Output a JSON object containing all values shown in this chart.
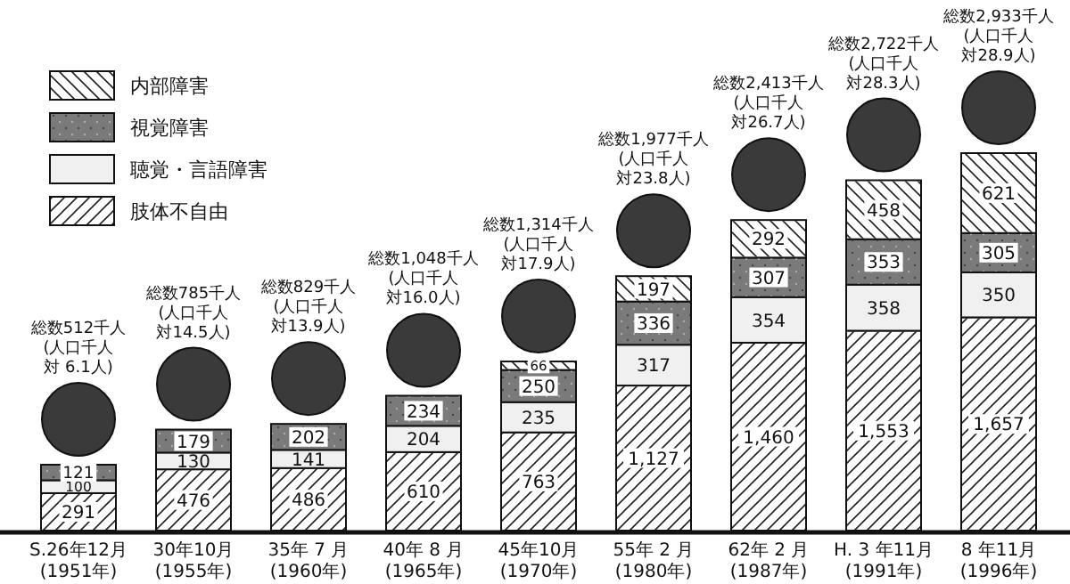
{
  "chart_data": {
    "type": "bar",
    "stacked": true,
    "data_labels": true,
    "legend": "top left",
    "categories": [
      "S.26年12月\n(1951年)",
      "30年10月\n(1955年)",
      "35年 7 月\n(1960年)",
      "40年 8 月\n(1965年)",
      "45年10月\n(1970年)",
      "55年 2 月\n(1980年)",
      "62年 2 月\n(1987年)",
      "H. 3 年11月\n(1991年)",
      "8 年11月\n(1996年)"
    ],
    "series": [
      {
        "name": "肢体不自由",
        "color": "#ffffff",
        "values": [
          291,
          476,
          486,
          610,
          763,
          1127,
          1460,
          1553,
          1657
        ],
        "value_labels": [
          "291",
          "476",
          "486",
          "610",
          "763",
          "1,127",
          "1,460",
          "1,553",
          "1,657"
        ]
      },
      {
        "name": "聴覚・言語障害",
        "color": "#f0f0f0",
        "values": [
          100,
          130,
          141,
          204,
          235,
          317,
          354,
          358,
          350
        ]
      },
      {
        "name": "視覚障害",
        "color": "#7a7a7a",
        "values": [
          121,
          179,
          202,
          234,
          250,
          336,
          307,
          353,
          305
        ]
      },
      {
        "name": "内部障害",
        "color": "#ffffff",
        "values": [
          null,
          null,
          null,
          null,
          66,
          197,
          292,
          458,
          621
        ]
      }
    ],
    "annotations": [
      "総数512千人",
      "(人口千人",
      "対 6.1人)",
      "総数785千人",
      "(人口千人",
      "対14.5人)",
      "総数829千人",
      "(人口千人",
      "対13.9人)",
      "総数1,048千人",
      "(人口千人",
      "対16.0人)",
      "総数1,314千人",
      "(人口千人",
      "対17.9人)",
      "総数1,977千人",
      "(人口千人",
      "対23.8人)",
      "総数2,413千人",
      "(人口千人",
      "対26.7人)",
      "総数2,722千人",
      "(人口千人",
      "対28.3人)",
      "総数2,933千人",
      "(人口千人",
      "対28.9人)"
    ]
  }
}
